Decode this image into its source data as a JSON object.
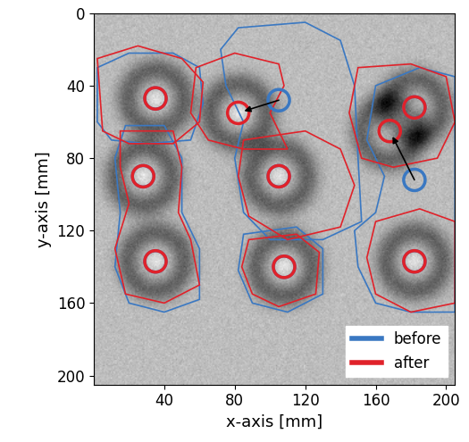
{
  "chart_data": {
    "type": "scatter",
    "x_label": "x-axis [mm]",
    "y_label": "y-axis [mm]",
    "xlim": [
      0,
      205
    ],
    "ylim": [
      205,
      0
    ],
    "xticks": [
      40,
      80,
      120,
      160,
      200
    ],
    "yticks": [
      0,
      40,
      80,
      120,
      160,
      200
    ],
    "legend": "lower right",
    "grid": false,
    "series": [
      {
        "name": "before",
        "color": "#3a78c2",
        "marker": "o",
        "x": [
          35,
          105,
          182,
          28,
          105,
          182,
          35,
          108,
          182
        ],
        "values": [
          47,
          48,
          52,
          90,
          90,
          92,
          137,
          140,
          137
        ],
        "outlines": [
          [
            [
              2,
              30
            ],
            [
              20,
              22
            ],
            [
              45,
              22
            ],
            [
              60,
              30
            ],
            [
              62,
              50
            ],
            [
              55,
              70
            ],
            [
              30,
              72
            ],
            [
              10,
              70
            ],
            [
              2,
              60
            ]
          ],
          [
            [
              82,
              8
            ],
            [
              120,
              5
            ],
            [
              140,
              15
            ],
            [
              148,
              40
            ],
            [
              150,
              80
            ],
            [
              152,
              115
            ],
            [
              130,
              125
            ],
            [
              100,
              125
            ],
            [
              85,
              110
            ],
            [
              80,
              80
            ],
            [
              85,
              60
            ],
            [
              75,
              40
            ],
            [
              72,
              20
            ]
          ],
          [
            [
              18,
              62
            ],
            [
              40,
              62
            ],
            [
              50,
              80
            ],
            [
              50,
              110
            ],
            [
              60,
              130
            ],
            [
              60,
              158
            ],
            [
              40,
              165
            ],
            [
              20,
              160
            ],
            [
              12,
              140
            ],
            [
              15,
              110
            ],
            [
              12,
              80
            ]
          ],
          [
            [
              85,
              122
            ],
            [
              115,
              118
            ],
            [
              130,
              130
            ],
            [
              130,
              155
            ],
            [
              110,
              165
            ],
            [
              90,
              160
            ],
            [
              82,
              142
            ]
          ],
          [
            [
              160,
              40
            ],
            [
              185,
              30
            ],
            [
              205,
              35
            ],
            [
              205,
              165
            ],
            [
              180,
              165
            ],
            [
              160,
              160
            ],
            [
              150,
              140
            ],
            [
              148,
              120
            ],
            [
              160,
              110
            ],
            [
              165,
              90
            ],
            [
              155,
              70
            ]
          ]
        ]
      },
      {
        "name": "after",
        "color": "#e0222a",
        "marker": "o",
        "x": [
          35,
          82,
          182,
          28,
          105,
          168,
          35,
          108,
          182
        ],
        "values": [
          47,
          55,
          52,
          90,
          90,
          65,
          137,
          140,
          137
        ],
        "outlines": [
          [
            [
              2,
              25
            ],
            [
              25,
              18
            ],
            [
              50,
              25
            ],
            [
              62,
              38
            ],
            [
              60,
              60
            ],
            [
              45,
              72
            ],
            [
              20,
              72
            ],
            [
              5,
              65
            ]
          ],
          [
            [
              58,
              30
            ],
            [
              80,
              22
            ],
            [
              105,
              28
            ],
            [
              108,
              40
            ],
            [
              100,
              55
            ],
            [
              110,
              75
            ],
            [
              85,
              75
            ],
            [
              65,
              70
            ],
            [
              55,
              55
            ]
          ],
          [
            [
              85,
              70
            ],
            [
              120,
              65
            ],
            [
              140,
              75
            ],
            [
              148,
              95
            ],
            [
              140,
              118
            ],
            [
              110,
              125
            ],
            [
              88,
              112
            ],
            [
              82,
              90
            ]
          ],
          [
            [
              15,
              65
            ],
            [
              45,
              65
            ],
            [
              50,
              85
            ],
            [
              48,
              110
            ],
            [
              55,
              125
            ],
            [
              60,
              150
            ],
            [
              40,
              160
            ],
            [
              18,
              155
            ],
            [
              12,
              130
            ],
            [
              20,
              105
            ],
            [
              15,
              85
            ]
          ],
          [
            [
              150,
              30
            ],
            [
              180,
              28
            ],
            [
              200,
              35
            ],
            [
              205,
              60
            ],
            [
              195,
              80
            ],
            [
              170,
              85
            ],
            [
              152,
              80
            ],
            [
              145,
              55
            ]
          ],
          [
            [
              88,
              125
            ],
            [
              115,
              122
            ],
            [
              128,
              132
            ],
            [
              126,
              155
            ],
            [
              105,
              162
            ],
            [
              90,
              155
            ],
            [
              84,
              140
            ]
          ],
          [
            [
              160,
              115
            ],
            [
              185,
              108
            ],
            [
              205,
              115
            ],
            [
              205,
              160
            ],
            [
              180,
              165
            ],
            [
              160,
              155
            ],
            [
              155,
              135
            ]
          ]
        ]
      }
    ]
  }
}
